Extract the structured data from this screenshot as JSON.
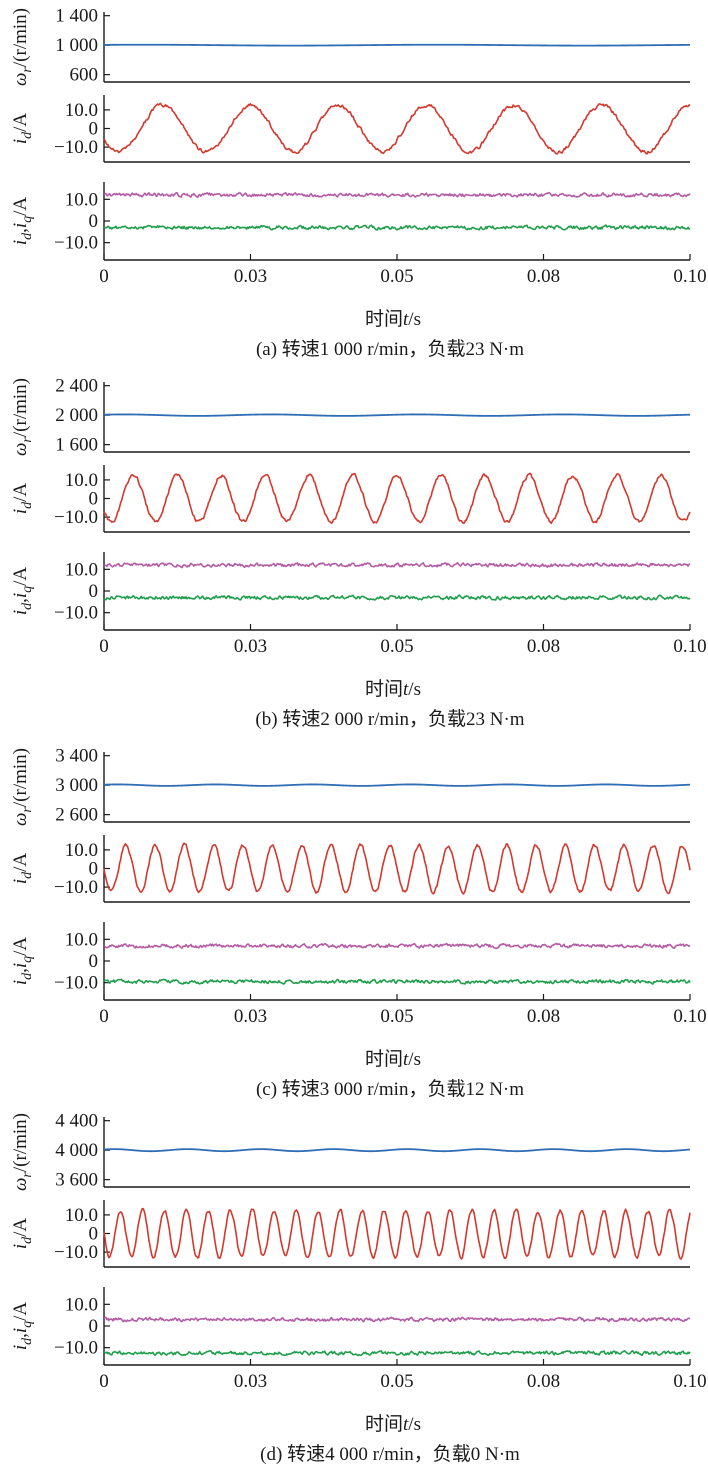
{
  "colors": {
    "speed": "#2f6eb5",
    "phase_current": "#d4382c",
    "iq": "#b35ba5",
    "id": "#1f9e4c",
    "axis": "#1a1a1a"
  },
  "chart_data": [
    {
      "id": "a",
      "type": "line",
      "caption": "(a) 转速1 000 r/min，负载23 N·m",
      "xlabel": "时间t/s",
      "x_ticks": [
        "0",
        "0.03",
        "0.05",
        "0.08",
        "0.10"
      ],
      "x_tick_values": [
        0,
        0.025,
        0.05,
        0.075,
        0.1
      ],
      "xlim": [
        0,
        0.1
      ],
      "panels": [
        {
          "ylabel": "ωr/(r/min)",
          "ylim": [
            500,
            1450
          ],
          "y_ticks": [
            {
              "v": 1400,
              "t": "1 400"
            },
            {
              "v": 1000,
              "t": "1 000"
            },
            {
              "v": 600,
              "t": "600"
            }
          ],
          "series": [
            {
              "kind": "speed",
              "mean": 1000,
              "ripple": 6,
              "ripple_periods": 2
            }
          ]
        },
        {
          "ylabel": "id/A",
          "ylim": [
            -18,
            18
          ],
          "y_ticks": [
            {
              "v": 10,
              "t": "10.0"
            },
            {
              "v": 0,
              "t": "0"
            },
            {
              "v": -10,
              "t": "−10.0"
            }
          ],
          "series": [
            {
              "kind": "phase_current",
              "amplitude": 12.5,
              "frequency_hz": 66.7,
              "phase_deg": 210
            }
          ]
        },
        {
          "ylabel": "id,iq/A",
          "ylim": [
            -18,
            18
          ],
          "y_ticks": [
            {
              "v": 10,
              "t": "10.0"
            },
            {
              "v": 0,
              "t": "0"
            },
            {
              "v": -10,
              "t": "−10.0"
            }
          ],
          "series": [
            {
              "kind": "iq",
              "mean": 12.0
            },
            {
              "kind": "id",
              "mean": -3.0
            }
          ]
        }
      ]
    },
    {
      "id": "b",
      "type": "line",
      "caption": "(b) 转速2 000 r/min，负载23 N·m",
      "xlabel": "时间t/s",
      "x_ticks": [
        "0",
        "0.03",
        "0.05",
        "0.08",
        "0.10"
      ],
      "x_tick_values": [
        0,
        0.025,
        0.05,
        0.075,
        0.1
      ],
      "xlim": [
        0,
        0.1
      ],
      "panels": [
        {
          "ylabel": "ωr/(r/min)",
          "ylim": [
            1500,
            2450
          ],
          "y_ticks": [
            {
              "v": 2400,
              "t": "2 400"
            },
            {
              "v": 2000,
              "t": "2 000"
            },
            {
              "v": 1600,
              "t": "1 600"
            }
          ],
          "series": [
            {
              "kind": "speed",
              "mean": 2000,
              "ripple": 10,
              "ripple_periods": 4
            }
          ]
        },
        {
          "ylabel": "id/A",
          "ylim": [
            -18,
            18
          ],
          "y_ticks": [
            {
              "v": 10,
              "t": "10.0"
            },
            {
              "v": 0,
              "t": "0"
            },
            {
              "v": -10,
              "t": "−10.0"
            }
          ],
          "series": [
            {
              "kind": "phase_current",
              "amplitude": 12.5,
              "frequency_hz": 133.3,
              "phase_deg": 210
            }
          ]
        },
        {
          "ylabel": "id,iq/A",
          "ylim": [
            -18,
            18
          ],
          "y_ticks": [
            {
              "v": 10,
              "t": "10.0"
            },
            {
              "v": 0,
              "t": "0"
            },
            {
              "v": -10,
              "t": "−10.0"
            }
          ],
          "series": [
            {
              "kind": "iq",
              "mean": 12.0
            },
            {
              "kind": "id",
              "mean": -3.0
            }
          ]
        }
      ]
    },
    {
      "id": "c",
      "type": "line",
      "caption": "(c) 转速3 000 r/min，负载12 N·m",
      "xlabel": "时间t/s",
      "x_ticks": [
        "0",
        "0.03",
        "0.05",
        "0.08",
        "0.10"
      ],
      "x_tick_values": [
        0,
        0.025,
        0.05,
        0.075,
        0.1
      ],
      "xlim": [
        0,
        0.1
      ],
      "panels": [
        {
          "ylabel": "ωr/(r/min)",
          "ylim": [
            2500,
            3450
          ],
          "y_ticks": [
            {
              "v": 3400,
              "t": "3 400"
            },
            {
              "v": 3000,
              "t": "3 000"
            },
            {
              "v": 2600,
              "t": "2 600"
            }
          ],
          "series": [
            {
              "kind": "speed",
              "mean": 3000,
              "ripple": 10,
              "ripple_periods": 6
            }
          ]
        },
        {
          "ylabel": "id/A",
          "ylim": [
            -18,
            18
          ],
          "y_ticks": [
            {
              "v": 10,
              "t": "10.0"
            },
            {
              "v": 0,
              "t": "0"
            },
            {
              "v": -10,
              "t": "−10.0"
            }
          ],
          "series": [
            {
              "kind": "phase_current",
              "amplitude": 12.5,
              "frequency_hz": 200,
              "phase_deg": 180
            }
          ]
        },
        {
          "ylabel": "id,iq/A",
          "ylim": [
            -18,
            18
          ],
          "y_ticks": [
            {
              "v": 10,
              "t": "10.0"
            },
            {
              "v": 0,
              "t": "0"
            },
            {
              "v": -10,
              "t": "−10.0"
            }
          ],
          "series": [
            {
              "kind": "iq",
              "mean": 7.0
            },
            {
              "kind": "id",
              "mean": -9.5
            }
          ]
        }
      ]
    },
    {
      "id": "d",
      "type": "line",
      "caption": "(d) 转速4 000 r/min，负载0 N·m",
      "xlabel": "时间t/s",
      "x_ticks": [
        "0",
        "0.03",
        "0.05",
        "0.08",
        "0.10"
      ],
      "x_tick_values": [
        0,
        0.025,
        0.05,
        0.075,
        0.1
      ],
      "xlim": [
        0,
        0.1
      ],
      "panels": [
        {
          "ylabel": "ωr/(r/min)",
          "ylim": [
            3500,
            4450
          ],
          "y_ticks": [
            {
              "v": 4400,
              "t": "4 400"
            },
            {
              "v": 4000,
              "t": "4 000"
            },
            {
              "v": 3600,
              "t": "3 600"
            }
          ],
          "series": [
            {
              "kind": "speed",
              "mean": 4000,
              "ripple": 14,
              "ripple_periods": 8
            }
          ]
        },
        {
          "ylabel": "id/A",
          "ylim": [
            -18,
            18
          ],
          "y_ticks": [
            {
              "v": 10,
              "t": "10.0"
            },
            {
              "v": 0,
              "t": "0"
            },
            {
              "v": -10,
              "t": "−10.0"
            }
          ],
          "series": [
            {
              "kind": "phase_current",
              "amplitude": 12.5,
              "frequency_hz": 266.7,
              "phase_deg": 180
            }
          ]
        },
        {
          "ylabel": "id,iq/A",
          "ylim": [
            -18,
            18
          ],
          "y_ticks": [
            {
              "v": 10,
              "t": "10.0"
            },
            {
              "v": 0,
              "t": "0"
            },
            {
              "v": -10,
              "t": "−10.0"
            }
          ],
          "series": [
            {
              "kind": "iq",
              "mean": 3.0
            },
            {
              "kind": "id",
              "mean": -12.5
            }
          ]
        }
      ]
    }
  ]
}
